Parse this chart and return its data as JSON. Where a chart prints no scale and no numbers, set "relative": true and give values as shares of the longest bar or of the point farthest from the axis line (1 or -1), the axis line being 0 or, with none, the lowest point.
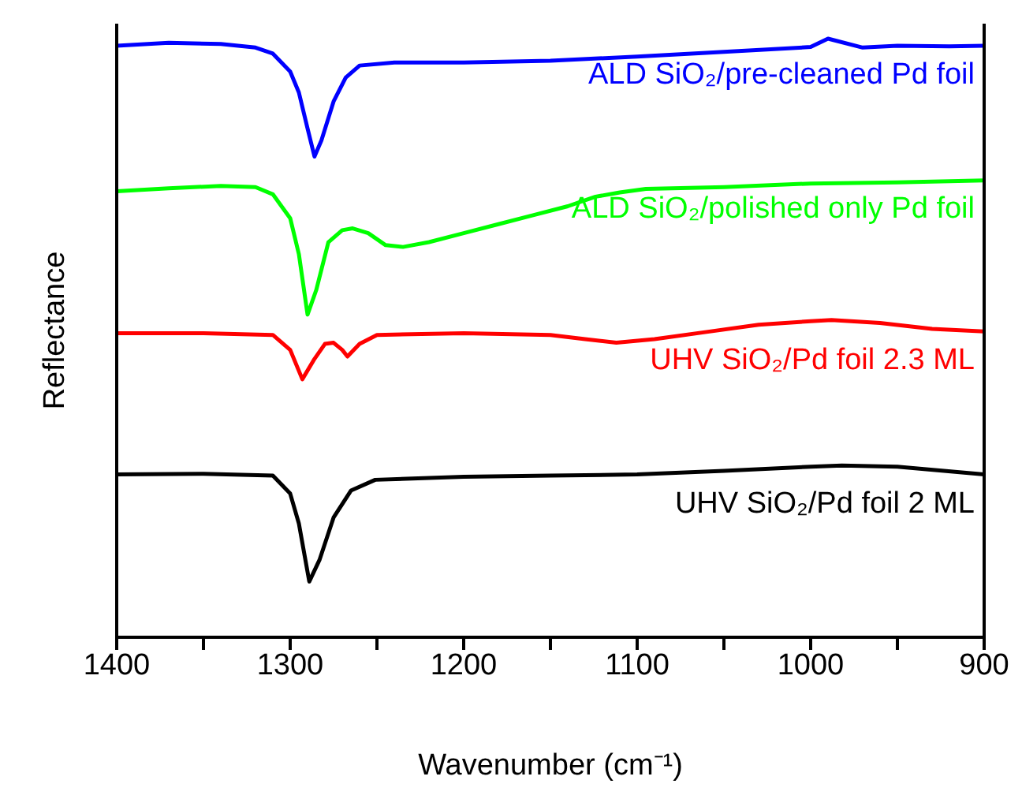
{
  "chart_data": {
    "type": "line",
    "relative": true,
    "xlabel": "Wavenumber (cm⁻¹)",
    "ylabel": "Reflectance",
    "xlim": [
      1400,
      900
    ],
    "xticks": [
      1400,
      {
        "value": 1350,
        "label": null
      },
      1300,
      {
        "value": 1250,
        "label": null
      },
      1200,
      {
        "value": 1150,
        "label": null
      },
      1100,
      {
        "value": 1050,
        "label": null
      },
      1000,
      {
        "value": 950,
        "label": null
      },
      900
    ],
    "grid": false,
    "legend": false,
    "marker": "none",
    "line_style": "solid",
    "series": [
      {
        "name": "ALD SiO₂/pre-cleaned Pd foil",
        "color": "#0000ff",
        "x": [
          1400,
          1370,
          1340,
          1320,
          1310,
          1300,
          1295,
          1290,
          1286,
          1282,
          1275,
          1268,
          1260,
          1240,
          1220,
          1200,
          1150,
          1100,
          1050,
          1000,
          990,
          970,
          950,
          920,
          900
        ],
        "values": [
          0.988,
          0.993,
          0.991,
          0.985,
          0.975,
          0.945,
          0.91,
          0.85,
          0.803,
          0.83,
          0.895,
          0.935,
          0.955,
          0.96,
          0.96,
          0.96,
          0.963,
          0.97,
          0.978,
          0.986,
          1.0,
          0.985,
          0.988,
          0.987,
          0.988
        ]
      },
      {
        "name": "ALD SiO₂/polished only Pd foil",
        "color": "#00ff00",
        "x": [
          1400,
          1370,
          1340,
          1320,
          1310,
          1300,
          1295,
          1290,
          1285,
          1278,
          1270,
          1264,
          1255,
          1245,
          1235,
          1220,
          1200,
          1180,
          1160,
          1140,
          1124,
          1110,
          1095,
          1050,
          1000,
          950,
          900
        ],
        "values": [
          0.745,
          0.75,
          0.754,
          0.752,
          0.74,
          0.7,
          0.64,
          0.539,
          0.58,
          0.66,
          0.68,
          0.683,
          0.675,
          0.655,
          0.652,
          0.66,
          0.675,
          0.69,
          0.705,
          0.72,
          0.736,
          0.743,
          0.749,
          0.752,
          0.758,
          0.76,
          0.763
        ]
      },
      {
        "name": "UHV SiO₂/Pd foil 2.3 ML",
        "color": "#ff0000",
        "x": [
          1400,
          1350,
          1310,
          1300,
          1293,
          1286,
          1280,
          1275,
          1270,
          1267,
          1260,
          1250,
          1200,
          1150,
          1130,
          1112,
          1090,
          1060,
          1030,
          1000,
          988,
          960,
          930,
          900
        ],
        "values": [
          0.508,
          0.508,
          0.505,
          0.48,
          0.431,
          0.465,
          0.49,
          0.492,
          0.48,
          0.469,
          0.49,
          0.505,
          0.508,
          0.505,
          0.498,
          0.492,
          0.498,
          0.51,
          0.522,
          0.528,
          0.53,
          0.525,
          0.515,
          0.511
        ]
      },
      {
        "name": "UHV SiO₂/Pd foil 2 ML",
        "color": "#000000",
        "x": [
          1400,
          1350,
          1310,
          1300,
          1295,
          1289,
          1283,
          1275,
          1265,
          1251,
          1200,
          1150,
          1100,
          1050,
          1000,
          982,
          950,
          900
        ],
        "values": [
          0.272,
          0.273,
          0.27,
          0.24,
          0.19,
          0.093,
          0.13,
          0.2,
          0.245,
          0.263,
          0.268,
          0.27,
          0.272,
          0.278,
          0.285,
          0.287,
          0.285,
          0.272
        ]
      }
    ]
  }
}
